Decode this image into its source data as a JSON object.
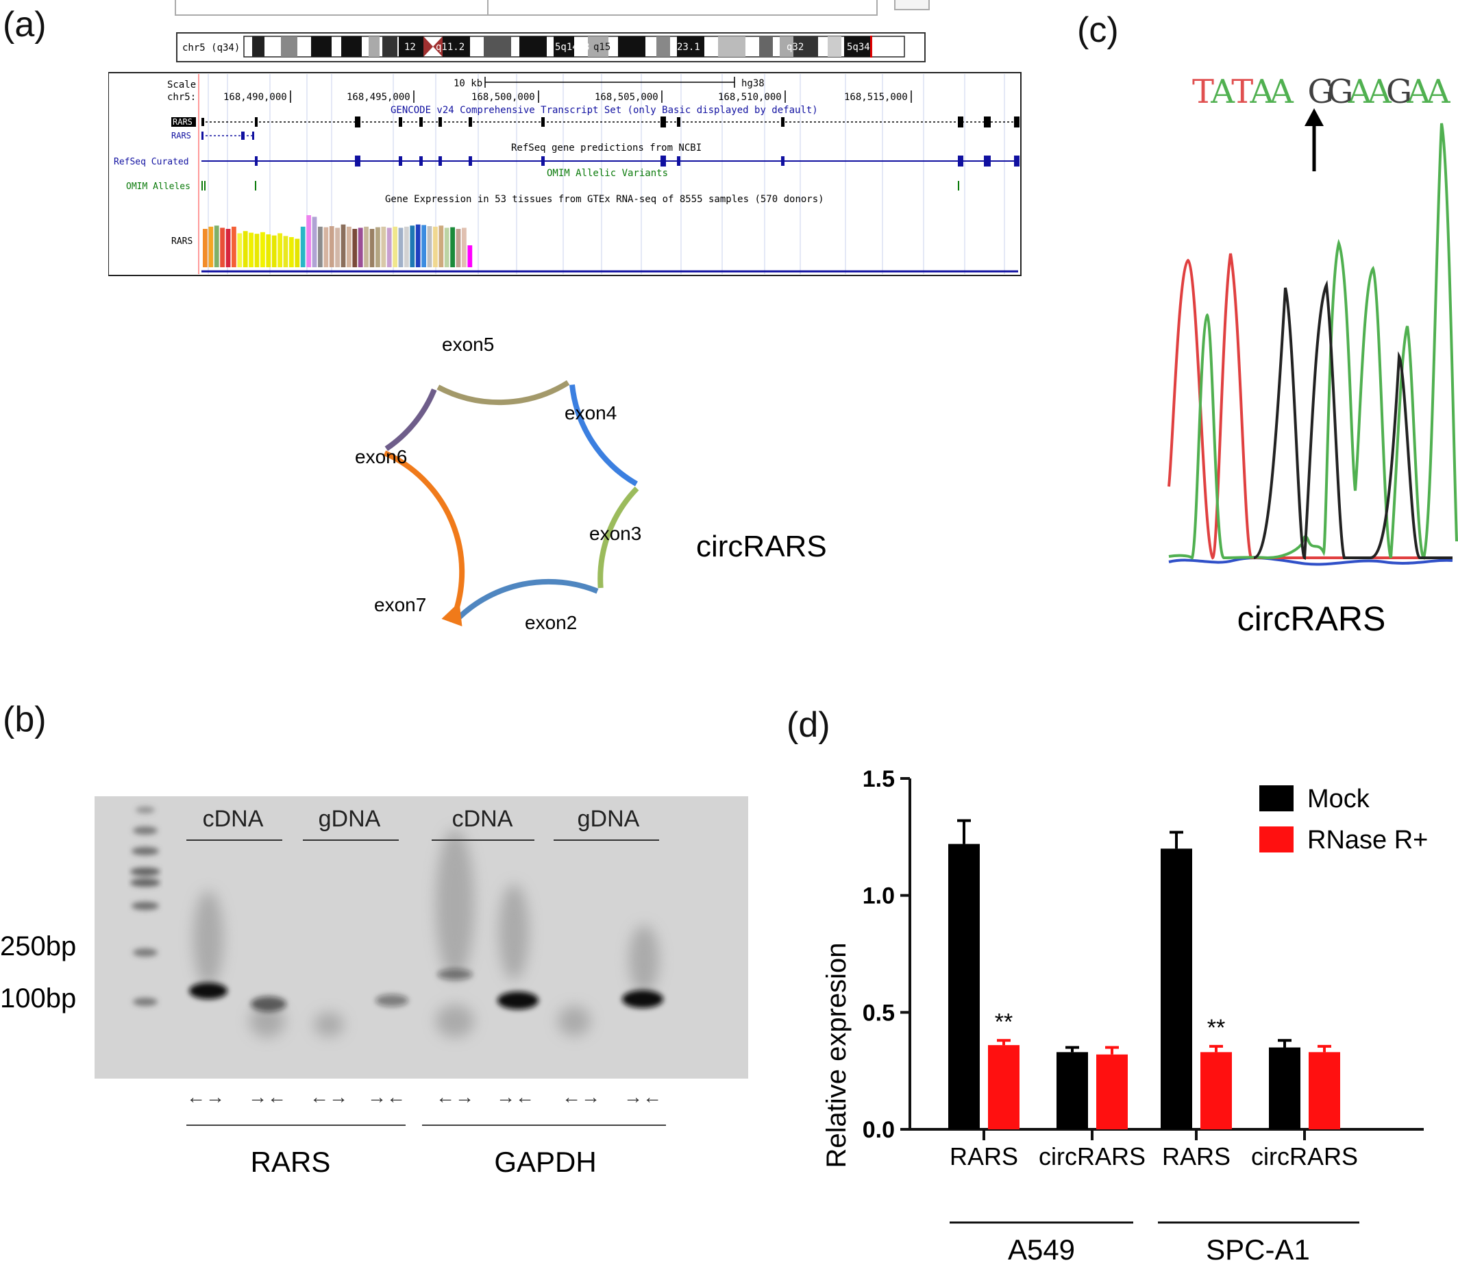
{
  "panels": {
    "a": {
      "label": "(a)"
    },
    "b": {
      "label": "(b)"
    },
    "c": {
      "label": "(c)"
    },
    "d": {
      "label": "(d)"
    }
  },
  "genome_browser": {
    "chrom_label": "chr5 (q34)",
    "ideogram_bands": [
      "12",
      "q11.2",
      "5q14.3",
      "q15",
      "23.1",
      "q32",
      "5q34"
    ],
    "scale_label": "Scale",
    "scale_bar_label": "10 kb",
    "assembly": "hg38",
    "chr_label": "chr5:",
    "positions": [
      "168,490,000",
      "168,495,000",
      "168,500,000",
      "168,505,000",
      "168,510,000",
      "168,515,000"
    ],
    "gencode_title": "GENCODE v24 Comprehensive Transcript Set (only Basic displayed by default)",
    "track_rars_1": "RARS",
    "track_rars_2": "RARS",
    "refseq_title": "RefSeq gene predictions from NCBI",
    "refseq_label": "RefSeq Curated",
    "omim_title": "OMIM Allelic Variants",
    "omim_label": "OMIM Alleles",
    "gtex_title": "Gene Expression in 53 tissues from GTEx RNA-seq of 8555 samples (570 donors)",
    "gtex_label": "RARS",
    "gtex_bars": [
      {
        "v": 0.7,
        "c": "#f28c28"
      },
      {
        "v": 0.74,
        "c": "#f5a623"
      },
      {
        "v": 0.76,
        "c": "#7fb069"
      },
      {
        "v": 0.72,
        "c": "#e94f37"
      },
      {
        "v": 0.7,
        "c": "#d7263d"
      },
      {
        "v": 0.74,
        "c": "#f46036"
      },
      {
        "v": 0.62,
        "c": "#f6f740"
      },
      {
        "v": 0.66,
        "c": "#e6e600"
      },
      {
        "v": 0.63,
        "c": "#f0f000"
      },
      {
        "v": 0.61,
        "c": "#e8e800"
      },
      {
        "v": 0.64,
        "c": "#f2f200"
      },
      {
        "v": 0.6,
        "c": "#eaea00"
      },
      {
        "v": 0.58,
        "c": "#e6e600"
      },
      {
        "v": 0.62,
        "c": "#f0ee10"
      },
      {
        "v": 0.57,
        "c": "#e8e820"
      },
      {
        "v": 0.55,
        "c": "#eeee00"
      },
      {
        "v": 0.52,
        "c": "#e4e400"
      },
      {
        "v": 0.74,
        "c": "#29b6c6"
      },
      {
        "v": 0.95,
        "c": "#ee82ee"
      },
      {
        "v": 0.92,
        "c": "#b0a3d4"
      },
      {
        "v": 0.74,
        "c": "#8c8c8c"
      },
      {
        "v": 0.73,
        "c": "#d6b4a0"
      },
      {
        "v": 0.75,
        "c": "#c9a28b"
      },
      {
        "v": 0.72,
        "c": "#d2b7a8"
      },
      {
        "v": 0.78,
        "c": "#8b6f5c"
      },
      {
        "v": 0.74,
        "c": "#d4b49e"
      },
      {
        "v": 0.7,
        "c": "#7a4a3a"
      },
      {
        "v": 0.72,
        "c": "#9b4f96"
      },
      {
        "v": 0.74,
        "c": "#c8b89a"
      },
      {
        "v": 0.7,
        "c": "#9a8064"
      },
      {
        "v": 0.73,
        "c": "#b4a582"
      },
      {
        "v": 0.74,
        "c": "#d8c8a8"
      },
      {
        "v": 0.72,
        "c": "#c8a0d0"
      },
      {
        "v": 0.74,
        "c": "#f0e68c"
      },
      {
        "v": 0.72,
        "c": "#a0b0c8"
      },
      {
        "v": 0.74,
        "c": "#d2d2d2"
      },
      {
        "v": 0.76,
        "c": "#1f78b4"
      },
      {
        "v": 0.78,
        "c": "#2040c0"
      },
      {
        "v": 0.77,
        "c": "#3c8ce0"
      },
      {
        "v": 0.75,
        "c": "#c0c0c0"
      },
      {
        "v": 0.74,
        "c": "#f0d890"
      },
      {
        "v": 0.76,
        "c": "#cdaa7d"
      },
      {
        "v": 0.72,
        "c": "#bcd4a4"
      },
      {
        "v": 0.73,
        "c": "#1b8a3a"
      },
      {
        "v": 0.7,
        "c": "#c0a090"
      },
      {
        "v": 0.72,
        "c": "#e0c0b0"
      },
      {
        "v": 0.4,
        "c": "#ff00ff"
      }
    ]
  },
  "circ_diagram": {
    "title": "circRARS",
    "exons": [
      {
        "label": "exon5",
        "color": "#a3996a"
      },
      {
        "label": "exon4",
        "color": "#3b7fe0"
      },
      {
        "label": "exon3",
        "color": "#9bbb5c"
      },
      {
        "label": "exon2",
        "color": "#4f86c0"
      },
      {
        "label": "exon7",
        "color": "#f07a1a"
      },
      {
        "label": "exon6",
        "color": "#6e5d8a"
      }
    ]
  },
  "gel": {
    "groups": [
      "cDNA",
      "gDNA",
      "cDNA",
      "gDNA"
    ],
    "markers": [
      "250bp",
      "100bp"
    ],
    "genes": [
      "RARS",
      "GAPDH"
    ],
    "primer_arrows": [
      "←→",
      "→←",
      "←→",
      "→←",
      "←→",
      "→←",
      "←→",
      "→←"
    ]
  },
  "sequencing": {
    "bases": [
      {
        "b": "T",
        "c": "#e05050"
      },
      {
        "b": "A",
        "c": "#50b050"
      },
      {
        "b": "T",
        "c": "#e05050"
      },
      {
        "b": "A",
        "c": "#50b050"
      },
      {
        "b": "A",
        "c": "#50b050"
      },
      {
        "b": " ",
        "c": "#000000"
      },
      {
        "b": "G",
        "c": "#404040"
      },
      {
        "b": "G",
        "c": "#404040"
      },
      {
        "b": "A",
        "c": "#50b050"
      },
      {
        "b": "A",
        "c": "#50b050"
      },
      {
        "b": "G",
        "c": "#404040"
      },
      {
        "b": "A",
        "c": "#50b050"
      },
      {
        "b": "A",
        "c": "#50b050"
      }
    ],
    "caption": "circRARS"
  },
  "chart_data": {
    "type": "bar",
    "ylabel": "Relative expresion",
    "ylim": [
      0,
      1.5
    ],
    "yticks": [
      "0.0",
      "0.5",
      "1.0",
      "1.5"
    ],
    "categories": [
      "RARS",
      "circRARS",
      "RARS",
      "circRARS"
    ],
    "groups": [
      "A549",
      "SPC-A1"
    ],
    "series": [
      {
        "name": "Mock",
        "color": "#000000",
        "values": [
          1.22,
          0.33,
          1.2,
          0.35
        ],
        "errors": [
          0.1,
          0.02,
          0.07,
          0.03
        ]
      },
      {
        "name": "RNase R+",
        "color": "#ff1010",
        "values": [
          0.36,
          0.32,
          0.33,
          0.33
        ],
        "errors": [
          0.02,
          0.03,
          0.025,
          0.025
        ]
      }
    ],
    "annotations": [
      "**",
      "**"
    ],
    "legend": "top-right"
  }
}
